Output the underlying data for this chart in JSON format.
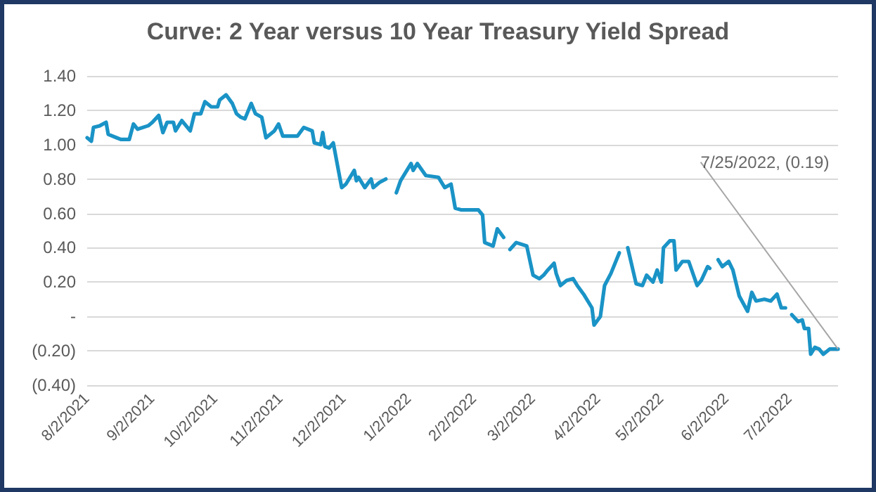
{
  "chart_data": {
    "type": "line",
    "title": "Curve: 2 Year versus 10 Year Treasury Yield Spread",
    "series": [
      {
        "color": "#1a93c6",
        "x": [
          "2021-08-02",
          "2021-08-04",
          "2021-08-05",
          "2021-08-08",
          "2021-08-11",
          "2021-08-12",
          "2021-08-16",
          "2021-08-18",
          "2021-08-22",
          "2021-08-24",
          "2021-08-26",
          "2021-08-31",
          "2021-09-02",
          "2021-09-05",
          "2021-09-07",
          "2021-09-09",
          "2021-09-12",
          "2021-09-13",
          "2021-09-16",
          "2021-09-20",
          "2021-09-22",
          "2021-09-25",
          "2021-09-27",
          "2021-09-30",
          "2021-10-03",
          "2021-10-04",
          "2021-10-07",
          "2021-10-10",
          "2021-10-12",
          "2021-10-14",
          "2021-10-16",
          "2021-10-19",
          "2021-10-21",
          "2021-10-24",
          "2021-10-26",
          "2021-10-30",
          "2021-11-01",
          "2021-11-03",
          "2021-11-08",
          "2021-11-10",
          "2021-11-13",
          "2021-11-17",
          "2021-11-18",
          "2021-11-21",
          "2021-11-22",
          "2021-11-23",
          "2021-11-25",
          "2021-11-27",
          "2021-12-01",
          "2021-12-03",
          "2021-12-07",
          "2021-12-08",
          "2021-12-09",
          "2021-12-12",
          "2021-12-15",
          "2021-12-16",
          "2021-12-19",
          "2021-12-22",
          "2021-12-24",
          "2021-12-27",
          "2021-12-29",
          "2022-01-03",
          "2022-01-04",
          "2022-01-06",
          "2022-01-10",
          "2022-01-16",
          "2022-01-19",
          "2022-01-22",
          "2022-01-24",
          "2022-01-27",
          "2022-02-04",
          "2022-02-06",
          "2022-02-07",
          "2022-02-11",
          "2022-02-13",
          "2022-02-16",
          "2022-02-18",
          "2022-02-19",
          "2022-02-22",
          "2022-02-27",
          "2022-03-02",
          "2022-03-05",
          "2022-03-07",
          "2022-03-09",
          "2022-03-12",
          "2022-03-13",
          "2022-03-15",
          "2022-03-18",
          "2022-03-21",
          "2022-03-23",
          "2022-03-26",
          "2022-03-30",
          "2022-03-31",
          "2022-04-03",
          "2022-04-05",
          "2022-04-08",
          "2022-04-12",
          "2022-04-15",
          "2022-04-16",
          "2022-04-20",
          "2022-04-23",
          "2022-04-25",
          "2022-04-28",
          "2022-04-30",
          "2022-05-02",
          "2022-05-03",
          "2022-05-06",
          "2022-05-08",
          "2022-05-09",
          "2022-05-12",
          "2022-05-15",
          "2022-05-19",
          "2022-05-21",
          "2022-05-24",
          "2022-05-25",
          "2022-05-27",
          "2022-05-29",
          "2022-05-31",
          "2022-06-03",
          "2022-06-05",
          "2022-06-08",
          "2022-06-12",
          "2022-06-14",
          "2022-06-16",
          "2022-06-20",
          "2022-06-23",
          "2022-06-26",
          "2022-06-28",
          "2022-06-30",
          "2022-07-01",
          "2022-07-03",
          "2022-07-06",
          "2022-07-08",
          "2022-07-09",
          "2022-07-11",
          "2022-07-12",
          "2022-07-14",
          "2022-07-16",
          "2022-07-18",
          "2022-07-21",
          "2022-07-25"
        ],
        "values": [
          1.04,
          1.02,
          1.1,
          1.11,
          1.13,
          1.06,
          1.04,
          1.03,
          1.03,
          1.12,
          1.09,
          1.11,
          1.13,
          1.17,
          1.07,
          1.13,
          1.13,
          1.08,
          1.14,
          1.08,
          1.18,
          1.18,
          1.25,
          1.22,
          1.22,
          1.26,
          1.29,
          1.24,
          1.18,
          1.16,
          1.15,
          1.24,
          1.18,
          1.16,
          1.04,
          1.08,
          1.12,
          1.05,
          1.05,
          1.05,
          1.1,
          1.08,
          1.01,
          1.0,
          1.07,
          0.99,
          0.98,
          1.01,
          0.75,
          0.77,
          0.85,
          0.79,
          0.81,
          0.75,
          0.8,
          0.75,
          0.78,
          0.8,
          null,
          0.72,
          0.79,
          0.89,
          0.85,
          0.89,
          0.82,
          0.81,
          0.75,
          0.77,
          0.63,
          0.62,
          0.62,
          0.59,
          0.43,
          0.41,
          0.51,
          0.46,
          null,
          0.39,
          0.43,
          0.41,
          0.24,
          0.22,
          0.24,
          0.27,
          0.31,
          0.25,
          0.18,
          0.21,
          0.22,
          0.18,
          0.13,
          0.05,
          -0.05,
          0.0,
          0.18,
          0.25,
          0.37,
          null,
          0.4,
          0.19,
          0.18,
          0.24,
          0.2,
          0.27,
          0.2,
          0.4,
          0.44,
          0.44,
          0.27,
          0.32,
          0.32,
          0.18,
          0.21,
          0.29,
          0.28,
          null,
          0.33,
          0.29,
          0.32,
          0.27,
          0.12,
          0.03,
          0.14,
          0.09,
          0.1,
          0.09,
          0.13,
          0.05,
          0.05,
          null,
          0.01,
          -0.03,
          -0.02,
          -0.07,
          -0.07,
          -0.22,
          -0.18,
          -0.19,
          -0.22,
          -0.19,
          -0.19
        ]
      }
    ],
    "xlim": [
      "2021-08-02",
      "2022-07-25"
    ],
    "xticks": [
      {
        "value": "2021-08-02",
        "label": "8/2/2021"
      },
      {
        "value": "2021-09-02",
        "label": "9/2/2021"
      },
      {
        "value": "2021-10-02",
        "label": "10/2/2021"
      },
      {
        "value": "2021-11-02",
        "label": "11/2/2021"
      },
      {
        "value": "2021-12-02",
        "label": "12/2/2021"
      },
      {
        "value": "2022-01-02",
        "label": "1/2/2022"
      },
      {
        "value": "2022-02-02",
        "label": "2/2/2022"
      },
      {
        "value": "2022-03-02",
        "label": "3/2/2022"
      },
      {
        "value": "2022-04-02",
        "label": "4/2/2022"
      },
      {
        "value": "2022-05-02",
        "label": "5/2/2022"
      },
      {
        "value": "2022-06-02",
        "label": "6/2/2022"
      },
      {
        "value": "2022-07-02",
        "label": "7/2/2022"
      }
    ],
    "ylim": [
      -0.4,
      1.4
    ],
    "yticks": [
      {
        "value": -0.4,
        "label": "(0.40)"
      },
      {
        "value": -0.2,
        "label": "(0.20)"
      },
      {
        "value": 0,
        "label": "-"
      },
      {
        "value": 0.2,
        "label": "0.20"
      },
      {
        "value": 0.4,
        "label": "0.40"
      },
      {
        "value": 0.6,
        "label": "0.60"
      },
      {
        "value": 0.8,
        "label": "0.80"
      },
      {
        "value": 1.0,
        "label": "1.00"
      },
      {
        "value": 1.2,
        "label": "1.20"
      },
      {
        "value": 1.4,
        "label": "1.40"
      }
    ],
    "annotations": [
      {
        "text": "7/25/2022, (0.19)",
        "x": "2022-07-25",
        "y": -0.19
      }
    ],
    "grid": "y",
    "marker": "none",
    "line_style": "solid"
  }
}
